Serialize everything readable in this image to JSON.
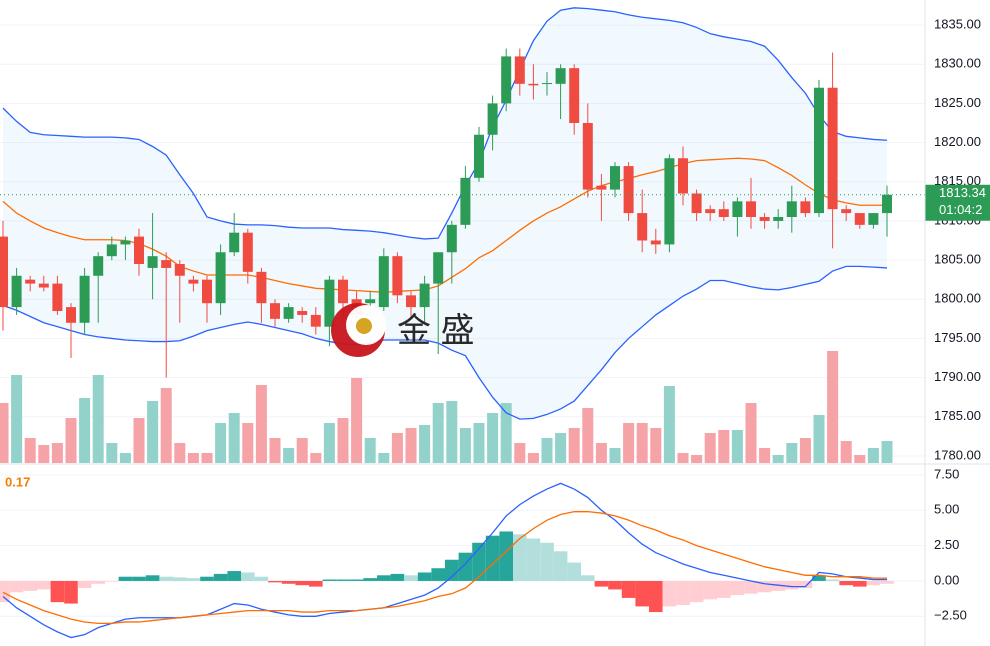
{
  "chart_data": [
    {
      "type": "candlestick",
      "open": [
        1808,
        1799,
        1802.5,
        1802,
        1802,
        1799,
        1797,
        1803,
        1805.5,
        1807,
        1808,
        1804,
        1805,
        1804.5,
        1802.5,
        1802.5,
        1799.5,
        1806,
        1808.5,
        1803.5,
        1799.5,
        1797.5,
        1798.5,
        1798,
        1796.5,
        1802.5,
        1800,
        1799.5,
        1799,
        1805.5,
        1800.5,
        1799,
        1802,
        1806,
        1809.5,
        1815.5,
        1821,
        1825,
        1831,
        1827.5,
        1827.5,
        1827.5,
        1829.5,
        1822.5,
        1814.5,
        1814,
        1817,
        1811,
        1807.5,
        1807,
        1818,
        1813.5,
        1811.5,
        1811.5,
        1810.5,
        1812.5,
        1810.5,
        1810,
        1810.5,
        1812.5,
        1811,
        1827,
        1811.5,
        1811,
        1809.5,
        1811
      ],
      "high": [
        1810,
        1804,
        1803,
        1803,
        1803,
        1799.5,
        1804,
        1806,
        1808,
        1808,
        1809,
        1811,
        1806,
        1805,
        1803,
        1803,
        1807,
        1811,
        1809,
        1804,
        1800,
        1799.5,
        1799,
        1799,
        1803,
        1803,
        1801,
        1801,
        1806.5,
        1806,
        1801,
        1803,
        1806,
        1810,
        1817,
        1822,
        1826,
        1832,
        1832,
        1830,
        1829,
        1830,
        1830,
        1825,
        1816,
        1817.5,
        1817.5,
        1814,
        1809,
        1818.5,
        1819.5,
        1814,
        1812,
        1812.5,
        1813,
        1815.5,
        1811,
        1811.5,
        1814.5,
        1813,
        1828,
        1831.5,
        1812,
        1811,
        1811,
        1814.5
      ],
      "low": [
        1796,
        1798,
        1801,
        1801,
        1798,
        1792.5,
        1795.5,
        1797,
        1805,
        1805,
        1803,
        1800,
        1790,
        1797,
        1801,
        1797,
        1798,
        1805.5,
        1802,
        1797,
        1796.5,
        1797,
        1797,
        1795.5,
        1794,
        1797,
        1796,
        1798,
        1798.5,
        1799.5,
        1797.5,
        1797,
        1793,
        1802,
        1809,
        1815,
        1819,
        1824,
        1826,
        1825.5,
        1826,
        1823,
        1821,
        1813,
        1810,
        1813,
        1810,
        1806,
        1805.8,
        1806,
        1812,
        1810,
        1810,
        1810,
        1808,
        1809,
        1809,
        1809,
        1808.5,
        1810.5,
        1810.5,
        1806.5,
        1810,
        1809,
        1809,
        1808
      ],
      "close": [
        1799,
        1803,
        1802,
        1801.5,
        1798.5,
        1797,
        1803,
        1805.5,
        1807,
        1807.5,
        1804.5,
        1805.5,
        1804,
        1803,
        1802,
        1799.5,
        1806,
        1808.5,
        1803.5,
        1799.5,
        1797.5,
        1799,
        1798,
        1796.5,
        1802.5,
        1799.5,
        1798,
        1800,
        1805.5,
        1800.5,
        1799,
        1802,
        1806,
        1809.5,
        1815.5,
        1821,
        1825,
        1831,
        1827.5,
        1827.3,
        1827.6,
        1829.5,
        1822.5,
        1814,
        1814,
        1817,
        1811,
        1807.5,
        1807,
        1818,
        1813.5,
        1811,
        1811,
        1810.5,
        1812.5,
        1810.5,
        1810,
        1810.5,
        1812.5,
        1811,
        1827,
        1811.5,
        1811,
        1809.5,
        1811,
        1813.34
      ],
      "volume": [
        60,
        88,
        25,
        18,
        20,
        45,
        65,
        88,
        20,
        10,
        45,
        62,
        75,
        20,
        10,
        10,
        40,
        50,
        40,
        78,
        25,
        15,
        25,
        10,
        40,
        45,
        85,
        25,
        10,
        30,
        35,
        38,
        60,
        62,
        35,
        40,
        50,
        60,
        20,
        10,
        25,
        30,
        35,
        55,
        20,
        15,
        40,
        40,
        35,
        77,
        10,
        8,
        30,
        33,
        33,
        60,
        15,
        8,
        20,
        25,
        48,
        112,
        22,
        8,
        15,
        22
      ],
      "bb_upper": [
        1824.4,
        1822.7,
        1821.3,
        1821.0,
        1820.9,
        1820.8,
        1820.7,
        1820.7,
        1820.7,
        1820.6,
        1820.4,
        1819.5,
        1818.4,
        1815.9,
        1813.5,
        1810.5,
        1810.0,
        1809.6,
        1809.5,
        1809.5,
        1809.4,
        1809.2,
        1809.1,
        1809.1,
        1809.1,
        1808.9,
        1808.8,
        1808.7,
        1808.5,
        1808.2,
        1807.9,
        1807.7,
        1807.8,
        1811.0,
        1814.5,
        1817.5,
        1822.0,
        1825.4,
        1829.3,
        1833.0,
        1835.5,
        1836.9,
        1837.2,
        1837.1,
        1836.9,
        1836.7,
        1836.3,
        1836.0,
        1835.8,
        1835.6,
        1835.3,
        1834.7,
        1833.9,
        1833.5,
        1833.2,
        1832.9,
        1832.3,
        1830.5,
        1828.3,
        1826.3,
        1823.5,
        1821.4,
        1820.8,
        1820.6,
        1820.4,
        1820.3
      ],
      "bb_middle": [
        1812.5,
        1811.0,
        1810.0,
        1809.1,
        1808.5,
        1808.0,
        1807.6,
        1807.6,
        1807.6,
        1807.5,
        1807.1,
        1806.4,
        1805.5,
        1804.2,
        1803.6,
        1803.1,
        1803.1,
        1803.1,
        1803.1,
        1802.8,
        1802.4,
        1802.0,
        1801.7,
        1801.4,
        1801.3,
        1801.2,
        1801.1,
        1801.0,
        1800.9,
        1801.0,
        1801.1,
        1801.2,
        1801.7,
        1802.8,
        1803.9,
        1805.3,
        1806.2,
        1807.5,
        1808.8,
        1810.0,
        1811.0,
        1811.8,
        1812.8,
        1813.8,
        1814.5,
        1815.0,
        1815.4,
        1815.9,
        1816.3,
        1816.8,
        1817.3,
        1817.7,
        1817.8,
        1817.9,
        1818.0,
        1817.9,
        1817.7,
        1816.8,
        1815.8,
        1814.6,
        1813.5,
        1812.7,
        1812.3,
        1812.0,
        1812.0,
        1812.0
      ],
      "bb_lower": [
        1799.2,
        1798.6,
        1797.8,
        1797.0,
        1796.5,
        1796.0,
        1795.5,
        1795.2,
        1795.0,
        1794.8,
        1794.7,
        1794.6,
        1794.6,
        1794.7,
        1795.3,
        1796.0,
        1796.4,
        1796.8,
        1797.1,
        1796.8,
        1796.4,
        1796.0,
        1795.6,
        1795.0,
        1794.6,
        1794.3,
        1794.2,
        1794.4,
        1794.8,
        1794.8,
        1794.8,
        1794.8,
        1794.4,
        1793.5,
        1792.8,
        1790.0,
        1787.5,
        1785.5,
        1784.7,
        1784.8,
        1785.3,
        1786.0,
        1787.0,
        1789.0,
        1791.0,
        1793.2,
        1795.0,
        1796.5,
        1798.0,
        1799.2,
        1800.4,
        1801.3,
        1802.4,
        1802.4,
        1802.0,
        1801.6,
        1801.3,
        1801.2,
        1801.5,
        1801.9,
        1802.3,
        1803.6,
        1804.2,
        1804.2,
        1804.1,
        1804.0
      ],
      "up_color": "#2b9b55",
      "down_color": "#f04b41",
      "volume_up_color": "#93d2cb",
      "volume_down_color": "#f5a3a6",
      "band_color": "#2962ff",
      "middle_color": "#ff6d00",
      "ylim": [
        1779.1,
        1838.2
      ],
      "yticks": [
        {
          "value": 1835,
          "label": "1835.00"
        },
        {
          "value": 1830,
          "label": "1830.00"
        },
        {
          "value": 1825,
          "label": "1825.00"
        },
        {
          "value": 1820,
          "label": "1820.00"
        },
        {
          "value": 1815,
          "label": "1815.00"
        },
        {
          "value": 1810,
          "label": "1810.00"
        },
        {
          "value": 1805,
          "label": "1805.00"
        },
        {
          "value": 1800,
          "label": "1800.00"
        },
        {
          "value": 1795,
          "label": "1795.00"
        },
        {
          "value": 1790,
          "label": "1790.00"
        },
        {
          "value": 1785,
          "label": "1785.00"
        },
        {
          "value": 1780,
          "label": "1780.00"
        }
      ],
      "grid": true,
      "last_price": 1813.34,
      "countdown": "01:04:2",
      "watermark": "金 盛"
    },
    {
      "type": "macd",
      "indicator_value": 0.17,
      "histogram": [
        -1.5,
        -0.8,
        -0.7,
        -0.6,
        -1.5,
        -1.6,
        -0.5,
        -0.2,
        -0.05,
        0.3,
        0.3,
        0.4,
        0.3,
        0.25,
        0.2,
        0.3,
        0.5,
        0.7,
        0.6,
        0.3,
        -0.1,
        -0.2,
        -0.3,
        -0.4,
        0.1,
        0.1,
        0.1,
        0.2,
        0.4,
        0.5,
        0.4,
        0.6,
        0.9,
        1.5,
        2.0,
        2.7,
        3.2,
        3.5,
        3.3,
        3.0,
        2.7,
        2.1,
        1.3,
        0.4,
        -0.4,
        -0.6,
        -1.2,
        -1.8,
        -2.2,
        -1.8,
        -1.7,
        -1.5,
        -1.3,
        -1.2,
        -1.0,
        -0.9,
        -0.8,
        -0.7,
        -0.6,
        -0.5,
        0.4,
        0.1,
        -0.3,
        -0.4,
        -0.3,
        -0.2
      ],
      "macd": [
        -1.1,
        -1.9,
        -2.5,
        -3.1,
        -3.6,
        -4.0,
        -3.8,
        -3.3,
        -3.0,
        -2.7,
        -2.6,
        -2.6,
        -2.6,
        -2.6,
        -2.5,
        -2.4,
        -2.0,
        -1.6,
        -1.7,
        -2.0,
        -2.2,
        -2.4,
        -2.5,
        -2.5,
        -2.3,
        -2.2,
        -2.1,
        -2.0,
        -1.9,
        -1.6,
        -1.3,
        -1.0,
        -0.5,
        0.3,
        1.2,
        2.3,
        3.4,
        4.6,
        5.4,
        6.0,
        6.5,
        6.9,
        6.5,
        5.9,
        5.0,
        4.3,
        3.4,
        2.6,
        2.0,
        1.6,
        1.2,
        0.9,
        0.6,
        0.4,
        0.2,
        0.0,
        -0.2,
        -0.3,
        -0.4,
        -0.4,
        0.6,
        0.5,
        0.3,
        0.2,
        0.1,
        0.1
      ],
      "signal": [
        -0.8,
        -1.3,
        -1.7,
        -2.1,
        -2.4,
        -2.7,
        -2.9,
        -3.0,
        -3.0,
        -2.9,
        -2.9,
        -2.8,
        -2.7,
        -2.6,
        -2.5,
        -2.4,
        -2.3,
        -2.2,
        -2.1,
        -2.1,
        -2.1,
        -2.1,
        -2.2,
        -2.2,
        -2.1,
        -2.1,
        -2.1,
        -2.0,
        -1.9,
        -1.8,
        -1.6,
        -1.4,
        -1.1,
        -0.9,
        -0.5,
        0.3,
        1.2,
        2.1,
        3.0,
        3.7,
        4.3,
        4.7,
        4.9,
        4.9,
        4.8,
        4.6,
        4.3,
        3.9,
        3.6,
        3.2,
        2.9,
        2.5,
        2.2,
        1.9,
        1.6,
        1.3,
        1.0,
        0.8,
        0.6,
        0.4,
        0.4,
        0.3,
        0.3,
        0.3,
        0.2,
        0.2
      ],
      "macd_color": "#2962ff",
      "signal_color": "#ff6d00",
      "hist_up_strong": "#26a69a",
      "hist_up_weak": "#b2dfdb",
      "hist_down_strong": "#ff5252",
      "hist_down_weak": "#ffcdd2",
      "label_color": "#f57c00",
      "ylim": [
        -4.6,
        8.2
      ],
      "yticks": [
        {
          "value": 7.5,
          "label": "7.50"
        },
        {
          "value": 5,
          "label": "5.00"
        },
        {
          "value": 2.5,
          "label": "2.50"
        },
        {
          "value": 0,
          "label": "0.00"
        },
        {
          "value": -2.5,
          "label": "−2.50"
        }
      ]
    }
  ]
}
